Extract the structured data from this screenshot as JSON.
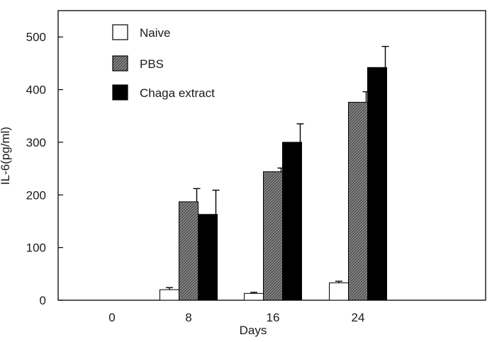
{
  "chart_data": {
    "type": "bar",
    "xlabel": "Days",
    "ylabel": "IL-6(pg/ml)",
    "categories": [
      "0",
      "8",
      "16",
      "24"
    ],
    "ylim": [
      0,
      550
    ],
    "yticks": [
      0,
      100,
      200,
      300,
      400,
      500
    ],
    "grid": false,
    "legend_position": "top-left",
    "series": [
      {
        "name": "Naive",
        "pattern": "white",
        "values": [
          null,
          20,
          13,
          33
        ],
        "errors": [
          null,
          4,
          2,
          3
        ]
      },
      {
        "name": "PBS",
        "pattern": "hatched",
        "values": [
          null,
          187,
          244,
          376
        ],
        "errors": [
          null,
          25,
          7,
          20
        ]
      },
      {
        "name": "Chaga extract",
        "pattern": "black",
        "values": [
          null,
          163,
          300,
          442
        ],
        "errors": [
          null,
          46,
          35,
          40
        ]
      }
    ]
  }
}
